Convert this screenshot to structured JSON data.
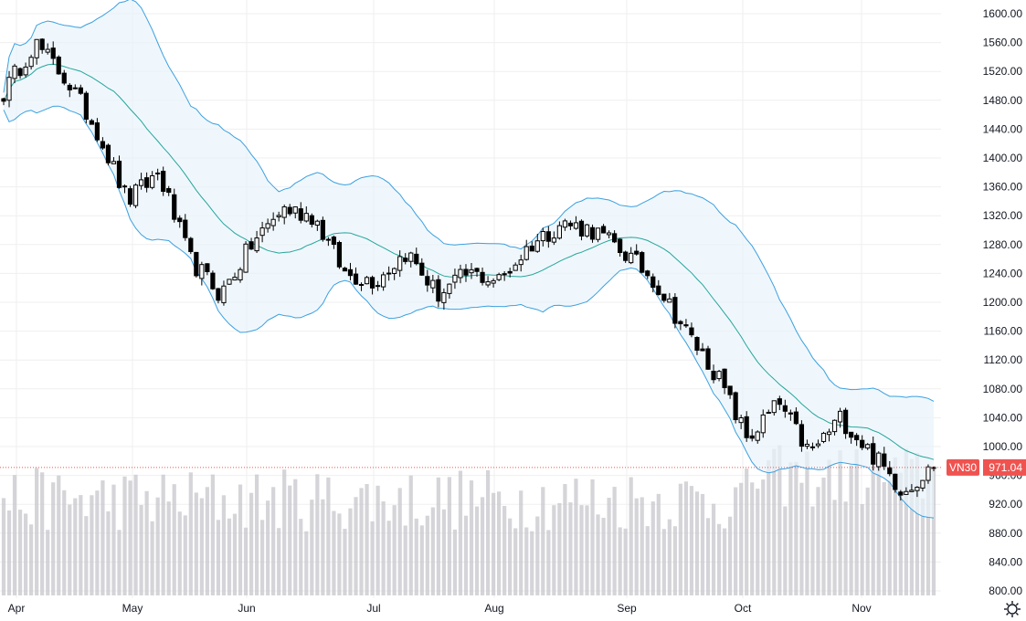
{
  "chart_data": {
    "type": "candlestick",
    "symbol": "VN30",
    "last_price": "971.04",
    "y_axis": {
      "min": 800,
      "max": 1600,
      "ticks": [
        "1600.00",
        "1560.00",
        "1520.00",
        "1480.00",
        "1440.00",
        "1400.00",
        "1360.00",
        "1320.00",
        "1280.00",
        "1240.00",
        "1200.00",
        "1160.00",
        "1120.00",
        "1080.00",
        "1040.00",
        "1000.00",
        "960.00",
        "920.00",
        "880.00",
        "840.00",
        "800.00"
      ]
    },
    "x_axis": {
      "ticks": [
        "Apr",
        "May",
        "Jun",
        "Jul",
        "Aug",
        "Sep",
        "Oct",
        "Nov"
      ]
    },
    "indicators": [
      "Bollinger Bands (20,2)",
      "Volume"
    ],
    "close_path": [
      {
        "date": "Apr",
        "close": 1490
      },
      {
        "date": "Apr",
        "close": 1560
      },
      {
        "date": "Apr",
        "close": 1510
      },
      {
        "date": "Apr",
        "close": 1440
      },
      {
        "date": "Apr",
        "close": 1340
      },
      {
        "date": "May",
        "close": 1380
      },
      {
        "date": "May",
        "close": 1260
      },
      {
        "date": "May",
        "close": 1210
      },
      {
        "date": "May",
        "close": 1280
      },
      {
        "date": "Jun",
        "close": 1330
      },
      {
        "date": "Jun",
        "close": 1320
      },
      {
        "date": "Jun",
        "close": 1240
      },
      {
        "date": "Jul",
        "close": 1230
      },
      {
        "date": "Jul",
        "close": 1270
      },
      {
        "date": "Jul",
        "close": 1210
      },
      {
        "date": "Jul",
        "close": 1240
      },
      {
        "date": "Aug",
        "close": 1230
      },
      {
        "date": "Aug",
        "close": 1280
      },
      {
        "date": "Aug",
        "close": 1310
      },
      {
        "date": "Sep",
        "close": 1300
      },
      {
        "date": "Sep",
        "close": 1270
      },
      {
        "date": "Sep",
        "close": 1230
      },
      {
        "date": "Sep",
        "close": 1160
      },
      {
        "date": "Oct",
        "close": 1100
      },
      {
        "date": "Oct",
        "close": 1010
      },
      {
        "date": "Oct",
        "close": 1060
      },
      {
        "date": "Oct",
        "close": 990
      },
      {
        "date": "Nov",
        "close": 1040
      },
      {
        "date": "Nov",
        "close": 990
      },
      {
        "date": "Nov",
        "close": 940
      },
      {
        "date": "Nov",
        "close": 971.04
      }
    ]
  },
  "colors": {
    "up_candle": "#ffffff",
    "down_candle": "#000000",
    "wick": "#000000",
    "band_line": "#3ba0e0",
    "basis_line": "#26a69a",
    "band_fill": "#e8f3fb",
    "volume": "#c7c7cc",
    "price_line": "#ef5350",
    "label_bg": "#ef5350"
  },
  "icons": {
    "settings": "gear-icon"
  }
}
